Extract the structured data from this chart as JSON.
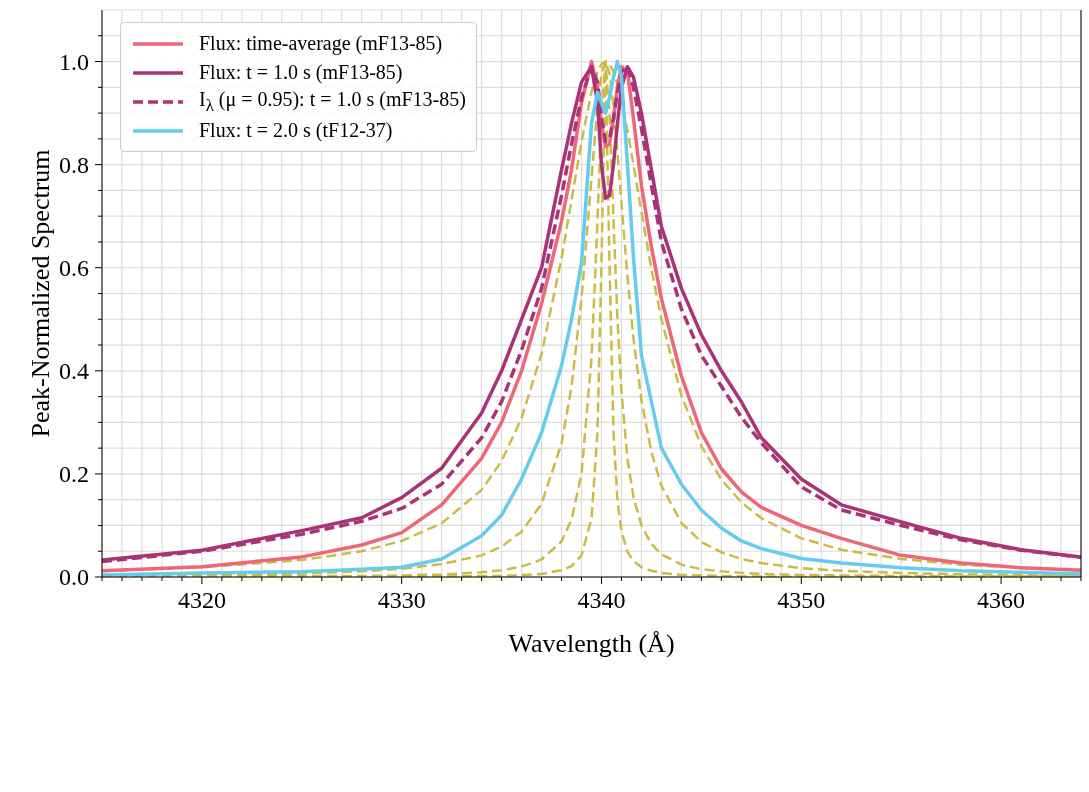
{
  "chart_data": {
    "type": "line",
    "xlabel": "Wavelength (Å)",
    "ylabel": "Peak-Normalized Spectrum",
    "x": [
      4315,
      4320,
      4325,
      4328,
      4330,
      4332,
      4334,
      4335,
      4336,
      4337,
      4338,
      4338.5,
      4339,
      4339.5,
      4339.8,
      4340,
      4340.2,
      4340.4,
      4340.6,
      4340.8,
      4341,
      4341.3,
      4341.6,
      4342,
      4342.5,
      4343,
      4344,
      4345,
      4346,
      4347,
      4348,
      4350,
      4352,
      4355,
      4358,
      4361,
      4364
    ],
    "series": [
      {
        "color": "#ccbb44",
        "line_style": "dashed",
        "values": [
          0.012,
          0.019,
          0.033,
          0.05,
          0.07,
          0.104,
          0.169,
          0.225,
          0.308,
          0.433,
          0.618,
          0.731,
          0.845,
          0.941,
          0.98,
          0.995,
          1,
          0.995,
          0.98,
          0.956,
          0.924,
          0.866,
          0.8,
          0.708,
          0.597,
          0.5,
          0.352,
          0.254,
          0.189,
          0.145,
          0.114,
          0.075,
          0.053,
          0.035,
          0.024,
          0.018,
          0.014
        ]
      },
      {
        "color": "#ccbb44",
        "line_style": "dashed",
        "values": [
          0.003,
          0.004,
          0.007,
          0.011,
          0.016,
          0.025,
          0.042,
          0.059,
          0.088,
          0.142,
          0.259,
          0.369,
          0.54,
          0.775,
          0.913,
          0.977,
          1,
          0.977,
          0.913,
          0.824,
          0.725,
          0.583,
          0.463,
          0.343,
          0.242,
          0.177,
          0.105,
          0.068,
          0.048,
          0.035,
          0.027,
          0.017,
          0.012,
          0.008,
          0.005,
          0.004,
          0.003
        ]
      },
      {
        "color": "#ccbb44",
        "line_style": "dashed",
        "values": [
          0.001,
          0.001,
          0.002,
          0.002,
          0.003,
          0.005,
          0.009,
          0.013,
          0.02,
          0.034,
          0.069,
          0.111,
          0.2,
          0.424,
          0.692,
          0.9,
          1,
          0.9,
          0.692,
          0.5,
          0.36,
          0.229,
          0.155,
          0.1,
          0.064,
          0.044,
          0.024,
          0.015,
          0.011,
          0.008,
          0.006,
          0.004,
          0.003,
          0.002,
          0.001,
          0.001,
          0.001
        ]
      },
      {
        "color": "#ccbb44",
        "line_style": "dashed",
        "values": [
          0,
          0,
          0,
          0,
          0,
          0.001,
          0.002,
          0.002,
          0.004,
          0.006,
          0.013,
          0.021,
          0.042,
          0.113,
          0.281,
          0.61,
          1,
          0.61,
          0.281,
          0.148,
          0.089,
          0.049,
          0.031,
          0.019,
          0.012,
          0.008,
          0.004,
          0.003,
          0.002,
          0.001,
          0.001,
          0,
          0,
          0,
          0,
          0,
          0
        ]
      },
      {
        "name": "Flux: time-average (mF13-85)",
        "color": "#ee6677",
        "line_style": "solid",
        "values": [
          0.012,
          0.02,
          0.039,
          0.062,
          0.086,
          0.14,
          0.23,
          0.3,
          0.4,
          0.53,
          0.69,
          0.79,
          0.92,
          1.0,
          0.95,
          0.88,
          0.835,
          0.84,
          0.89,
          0.95,
          0.99,
          0.98,
          0.89,
          0.76,
          0.64,
          0.54,
          0.39,
          0.28,
          0.21,
          0.165,
          0.135,
          0.1,
          0.075,
          0.042,
          0.027,
          0.018,
          0.013
        ]
      },
      {
        "name": "Flux: t = 1.0 s (mF13-85)",
        "color": "#aa3377",
        "line_style": "solid",
        "values": [
          0.033,
          0.052,
          0.09,
          0.115,
          0.154,
          0.211,
          0.318,
          0.4,
          0.5,
          0.6,
          0.79,
          0.88,
          0.96,
          0.99,
          0.92,
          0.8,
          0.735,
          0.74,
          0.8,
          0.88,
          0.95,
          0.99,
          0.97,
          0.9,
          0.79,
          0.68,
          0.56,
          0.47,
          0.4,
          0.34,
          0.27,
          0.19,
          0.14,
          0.107,
          0.075,
          0.053,
          0.039
        ]
      },
      {
        "name": "I$_{λ}$ (μ = 0.95): t = 1.0 s (mF13-85)",
        "color": "#aa3377",
        "line_style": "dashed",
        "values": [
          0.03,
          0.05,
          0.083,
          0.108,
          0.133,
          0.18,
          0.27,
          0.34,
          0.44,
          0.56,
          0.74,
          0.84,
          0.93,
          0.99,
          0.96,
          0.89,
          0.845,
          0.85,
          0.89,
          0.94,
          0.98,
          0.99,
          0.95,
          0.87,
          0.76,
          0.65,
          0.52,
          0.43,
          0.37,
          0.31,
          0.26,
          0.175,
          0.13,
          0.1,
          0.072,
          0.052,
          0.038
        ]
      },
      {
        "name": "Flux: t = 2.0 s (tF12-37)",
        "color": "#66ccee",
        "line_style": "solid",
        "values": [
          0.004,
          0.008,
          0.01,
          0.015,
          0.019,
          0.035,
          0.08,
          0.12,
          0.19,
          0.28,
          0.41,
          0.5,
          0.61,
          0.88,
          0.94,
          0.92,
          0.9,
          0.93,
          0.97,
          1.0,
          0.97,
          0.8,
          0.62,
          0.43,
          0.34,
          0.25,
          0.18,
          0.13,
          0.095,
          0.07,
          0.055,
          0.036,
          0.027,
          0.018,
          0.012,
          0.009,
          0.006
        ]
      }
    ],
    "xlim": [
      4315,
      4364
    ],
    "xticks": [
      {
        "value": 4315,
        "label": null
      },
      {
        "value": 4316,
        "label": null
      },
      {
        "value": 4317,
        "label": null
      },
      {
        "value": 4318,
        "label": null
      },
      {
        "value": 4319,
        "label": null
      },
      4320,
      {
        "value": 4321,
        "label": null
      },
      {
        "value": 4322,
        "label": null
      },
      {
        "value": 4323,
        "label": null
      },
      {
        "value": 4324,
        "label": null
      },
      {
        "value": 4325,
        "label": null
      },
      {
        "value": 4326,
        "label": null
      },
      {
        "value": 4327,
        "label": null
      },
      {
        "value": 4328,
        "label": null
      },
      {
        "value": 4329,
        "label": null
      },
      4330,
      {
        "value": 4331,
        "label": null
      },
      {
        "value": 4332,
        "label": null
      },
      {
        "value": 4333,
        "label": null
      },
      {
        "value": 4334,
        "label": null
      },
      {
        "value": 4335,
        "label": null
      },
      {
        "value": 4336,
        "label": null
      },
      {
        "value": 4337,
        "label": null
      },
      {
        "value": 4338,
        "label": null
      },
      {
        "value": 4339,
        "label": null
      },
      4340,
      {
        "value": 4341,
        "label": null
      },
      {
        "value": 4342,
        "label": null
      },
      {
        "value": 4343,
        "label": null
      },
      {
        "value": 4344,
        "label": null
      },
      {
        "value": 4345,
        "label": null
      },
      {
        "value": 4346,
        "label": null
      },
      {
        "value": 4347,
        "label": null
      },
      {
        "value": 4348,
        "label": null
      },
      {
        "value": 4349,
        "label": null
      },
      4350,
      {
        "value": 4351,
        "label": null
      },
      {
        "value": 4352,
        "label": null
      },
      {
        "value": 4353,
        "label": null
      },
      {
        "value": 4354,
        "label": null
      },
      {
        "value": 4355,
        "label": null
      },
      {
        "value": 4356,
        "label": null
      },
      {
        "value": 4357,
        "label": null
      },
      {
        "value": 4358,
        "label": null
      },
      {
        "value": 4359,
        "label": null
      },
      4360,
      {
        "value": 4361,
        "label": null
      },
      {
        "value": 4362,
        "label": null
      },
      {
        "value": 4363,
        "label": null
      },
      {
        "value": 4364,
        "label": null
      }
    ],
    "ylim": [
      0,
      1.1
    ],
    "yticks": [
      {
        "value": 0,
        "label": "0.0"
      },
      {
        "value": 0.05,
        "label": null
      },
      0.2,
      {
        "value": 0.1,
        "label": null
      },
      {
        "value": 0.15,
        "label": null
      },
      {
        "value": 0.25,
        "label": null
      },
      {
        "value": 0.3,
        "label": null
      },
      {
        "value": 0.35,
        "label": null
      },
      0.4,
      {
        "value": 0.45,
        "label": null
      },
      {
        "value": 0.5,
        "label": null
      },
      {
        "value": 0.55,
        "label": null
      },
      0.6,
      {
        "value": 0.65,
        "label": null
      },
      {
        "value": 0.7,
        "label": null
      },
      {
        "value": 0.75,
        "label": null
      },
      0.8,
      {
        "value": 0.85,
        "label": null
      },
      {
        "value": 0.9,
        "label": null
      },
      {
        "value": 0.95,
        "label": null
      },
      {
        "value": 1,
        "label": "1.0"
      },
      {
        "value": 1.05,
        "label": null
      }
    ],
    "grid": true,
    "legend": "top left"
  }
}
